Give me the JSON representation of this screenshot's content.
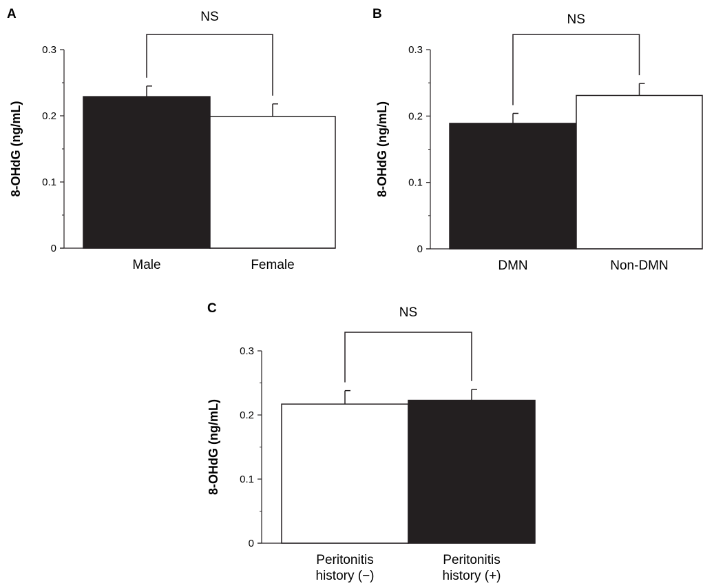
{
  "chart_data": [
    {
      "type": "bar",
      "panel": "A",
      "ylabel": "8-OHdG (ng/mL)",
      "ylim": [
        0,
        0.3
      ],
      "yticks": [
        "0",
        "0.1",
        "0.2",
        "0.3"
      ],
      "categories": [
        {
          "lines": [
            "Male"
          ],
          "value": 0.229,
          "error": 0.016,
          "fill": "#231f20"
        },
        {
          "lines": [
            "Female"
          ],
          "value": 0.199,
          "error": 0.019,
          "fill": "#ffffff"
        }
      ],
      "significance": "NS"
    },
    {
      "type": "bar",
      "panel": "B",
      "ylabel": "8-OHdG (ng/mL)",
      "ylim": [
        0,
        0.3
      ],
      "yticks": [
        "0",
        "0.1",
        "0.2",
        "0.3"
      ],
      "categories": [
        {
          "lines": [
            "DMN"
          ],
          "value": 0.189,
          "error": 0.015,
          "fill": "#231f20"
        },
        {
          "lines": [
            "Non-DMN"
          ],
          "value": 0.231,
          "error": 0.018,
          "fill": "#ffffff"
        }
      ],
      "significance": "NS"
    },
    {
      "type": "bar",
      "panel": "C",
      "ylabel": "8-OHdG (ng/mL)",
      "ylim": [
        0,
        0.3
      ],
      "yticks": [
        "0",
        "0.1",
        "0.2",
        "0.3"
      ],
      "categories": [
        {
          "lines": [
            "Peritonitis",
            "history (−)"
          ],
          "value": 0.217,
          "error": 0.021,
          "fill": "#ffffff"
        },
        {
          "lines": [
            "Peritonitis",
            "history (+)"
          ],
          "value": 0.223,
          "error": 0.017,
          "fill": "#231f20"
        }
      ],
      "significance": "NS"
    }
  ]
}
